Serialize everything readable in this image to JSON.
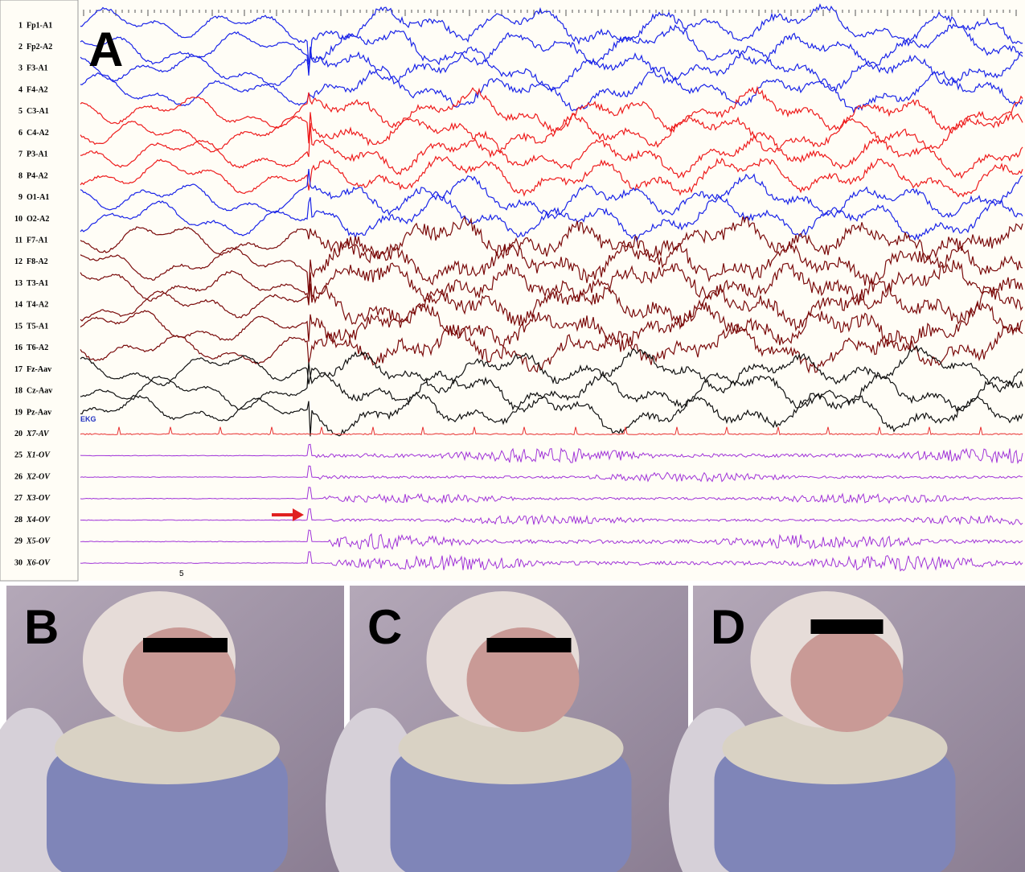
{
  "panels": [
    {
      "label": "A",
      "channels": [
        {
          "number": "1",
          "name": "Fp1-A1"
        },
        {
          "number": "2",
          "name": "Fp2-A2"
        },
        {
          "number": "3",
          "name": "F3-A1"
        },
        {
          "number": "4",
          "name": "F4-A2"
        },
        {
          "number": "5",
          "name": "C3-A1"
        },
        {
          "number": "6",
          "name": "C4-A2"
        },
        {
          "number": "7",
          "name": "P3-A1"
        },
        {
          "number": "8",
          "name": "P4-A2"
        },
        {
          "number": "9",
          "name": "O1-A1"
        },
        {
          "number": "10",
          "name": "O2-A2"
        },
        {
          "number": "11",
          "name": "F7-A1"
        },
        {
          "number": "12",
          "name": "F8-A2"
        },
        {
          "number": "13",
          "name": "T3-A1"
        },
        {
          "number": "14",
          "name": "T4-A2"
        },
        {
          "number": "15",
          "name": "T5-A1"
        },
        {
          "number": "16",
          "name": "T6-A2"
        },
        {
          "number": "17",
          "name": "Fz-Aav"
        },
        {
          "number": "18",
          "name": "Cz-Aav"
        },
        {
          "number": "19",
          "name": "Pz-Aav"
        },
        {
          "number": "20",
          "name": "X7-AV"
        },
        {
          "number": "25",
          "name": "X1-OV"
        },
        {
          "number": "26",
          "name": "X2-OV"
        },
        {
          "number": "27",
          "name": "X3-OV"
        },
        {
          "number": "28",
          "name": "X4-OV"
        },
        {
          "number": "29",
          "name": "X5-OV"
        },
        {
          "number": "30",
          "name": "X6-OV"
        }
      ],
      "ekg_label": "EKG",
      "time_marker": "5"
    },
    {
      "label": "B"
    },
    {
      "label": "C"
    },
    {
      "label": "D"
    }
  ]
}
